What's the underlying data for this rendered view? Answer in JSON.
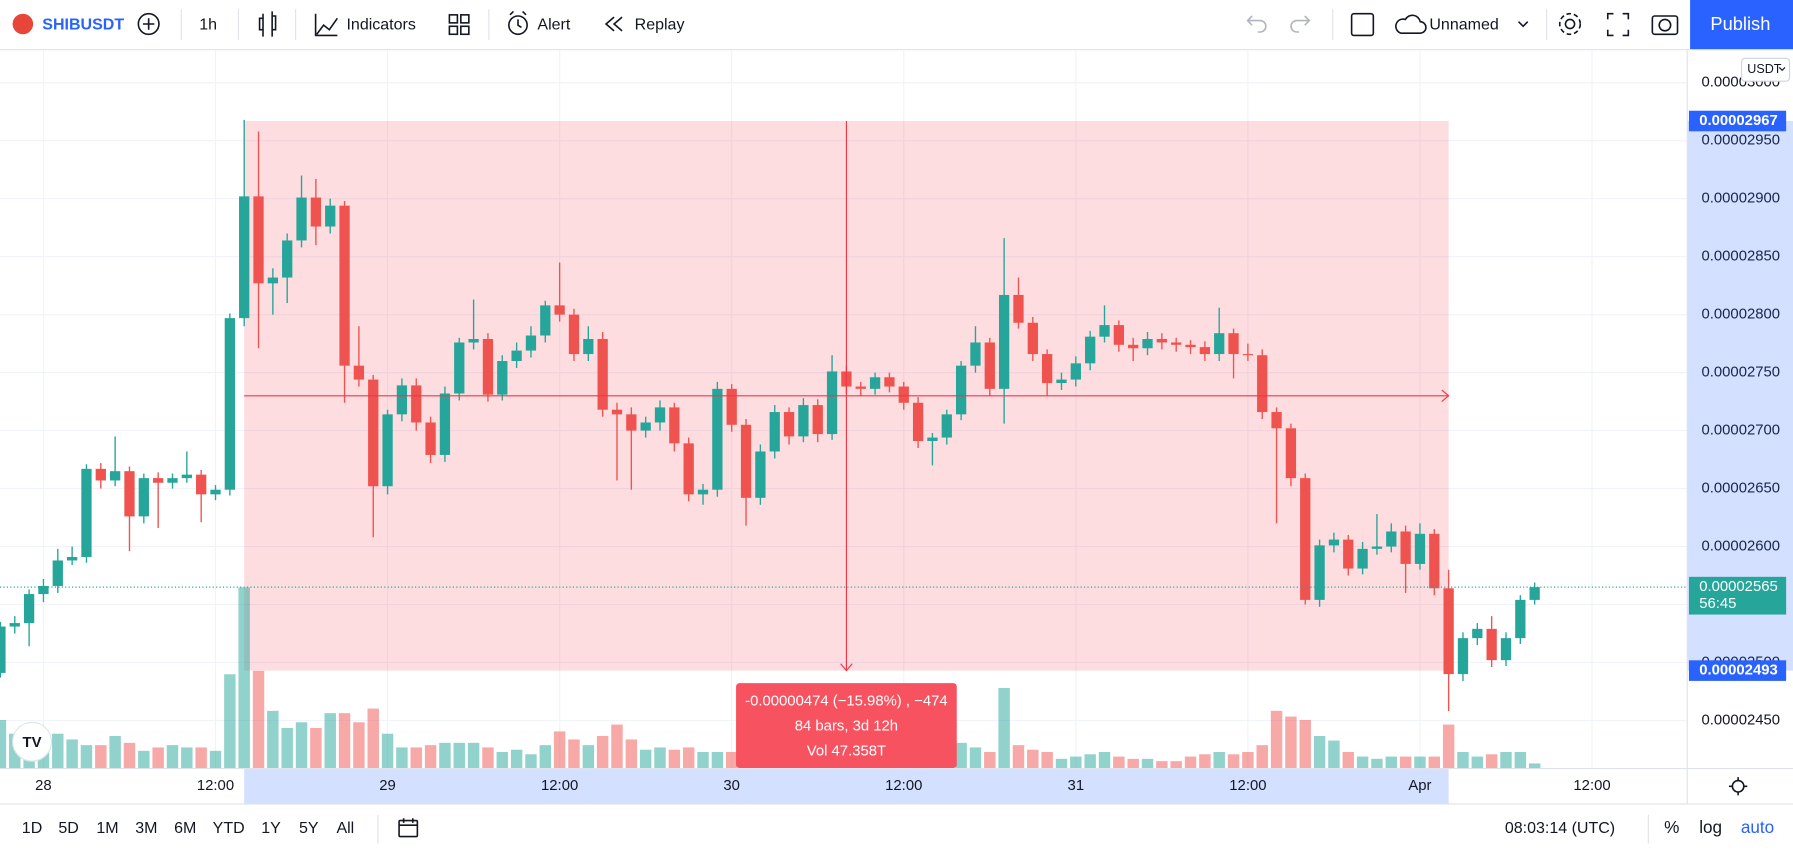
{
  "toolbar": {
    "symbol": "SHIBUSDT",
    "interval": "1h",
    "indicators": "Indicators",
    "alert": "Alert",
    "replay": "Replay",
    "layout_name": "Unnamed",
    "publish": "Publish"
  },
  "chart_data": {
    "type": "candlestick",
    "currency": "USDT",
    "x": [
      -3,
      -2,
      -1,
      0,
      1,
      2,
      3,
      4,
      5,
      6,
      7,
      8,
      9,
      10,
      11,
      12,
      13,
      14,
      15,
      16,
      17,
      18,
      19,
      20,
      21,
      22,
      23,
      24,
      25,
      26,
      27,
      28,
      29,
      30,
      31,
      32,
      33,
      34,
      35,
      36,
      37,
      38,
      39,
      40,
      41,
      42,
      43,
      44,
      45,
      46,
      47,
      48,
      49,
      50,
      51,
      52,
      53,
      54,
      55,
      56,
      57,
      58,
      59,
      60,
      61,
      62,
      63,
      64,
      65,
      66,
      67,
      68,
      69,
      70,
      71,
      72,
      73,
      74,
      75,
      76,
      77,
      78,
      79,
      80,
      81,
      82,
      83,
      84,
      85,
      86,
      87,
      88,
      89,
      90,
      91,
      92,
      93,
      94,
      95,
      96,
      97,
      98,
      99,
      100,
      101,
      102,
      103,
      104
    ],
    "open": [
      2.491e-05,
      2.531e-05,
      2.534e-05,
      2.559e-05,
      2.566e-05,
      2.588e-05,
      2.591e-05,
      2.667e-05,
      2.657e-05,
      2.665e-05,
      2.626e-05,
      2.659e-05,
      2.655e-05,
      2.659e-05,
      2.662e-05,
      2.645e-05,
      2.649e-05,
      2.797e-05,
      2.902e-05,
      2.827e-05,
      2.832e-05,
      2.864e-05,
      2.901e-05,
      2.876e-05,
      2.894e-05,
      2.756e-05,
      2.744e-05,
      2.652e-05,
      2.714e-05,
      2.739e-05,
      2.707e-05,
      2.679e-05,
      2.732e-05,
      2.776e-05,
      2.779e-05,
      2.731e-05,
      2.76e-05,
      2.769e-05,
      2.782e-05,
      2.808e-05,
      2.8e-05,
      2.766e-05,
      2.779e-05,
      2.718e-05,
      2.714e-05,
      2.7e-05,
      2.707e-05,
      2.72e-05,
      2.689e-05,
      2.645e-05,
      2.649e-05,
      2.736e-05,
      2.705e-05,
      2.642e-05,
      2.682e-05,
      2.716e-05,
      2.695e-05,
      2.722e-05,
      2.697e-05,
      2.751e-05,
      2.738e-05,
      2.736e-05,
      2.746e-05,
      2.738e-05,
      2.724e-05,
      2.691e-05,
      2.694e-05,
      2.714e-05,
      2.756e-05,
      2.776e-05,
      2.736e-05,
      2.817e-05,
      2.793e-05,
      2.766e-05,
      2.741e-05,
      2.744e-05,
      2.758e-05,
      2.781e-05,
      2.791e-05,
      2.774e-05,
      2.771e-05,
      2.779e-05,
      2.776e-05,
      2.774e-05,
      2.772e-05,
      2.766e-05,
      2.784e-05,
      2.766e-05,
      2.765e-05,
      2.716e-05,
      2.702e-05,
      2.659e-05,
      2.554e-05,
      2.601e-05,
      2.606e-05,
      2.581e-05,
      2.598e-05,
      2.6e-05,
      2.613e-05,
      2.585e-05,
      2.611e-05,
      2.564e-05,
      2.49e-05,
      2.521e-05,
      2.529e-05,
      2.502e-05,
      2.521e-05,
      2.554e-05
    ],
    "high": [
      2.535e-05,
      2.54e-05,
      2.563e-05,
      2.572e-05,
      2.598e-05,
      2.6e-05,
      2.671e-05,
      2.672e-05,
      2.695e-05,
      2.669e-05,
      2.663e-05,
      2.664e-05,
      2.663e-05,
      2.682e-05,
      2.666e-05,
      2.653e-05,
      2.801e-05,
      2.968e-05,
      2.958e-05,
      2.84e-05,
      2.87e-05,
      2.92e-05,
      2.917e-05,
      2.9e-05,
      2.898e-05,
      2.79e-05,
      2.748e-05,
      2.718e-05,
      2.745e-05,
      2.745e-05,
      2.712e-05,
      2.738e-05,
      2.78e-05,
      2.813e-05,
      2.784e-05,
      2.765e-05,
      2.776e-05,
      2.79e-05,
      2.812e-05,
      2.845e-05,
      2.805e-05,
      2.79e-05,
      2.785e-05,
      2.724e-05,
      2.72e-05,
      2.712e-05,
      2.726e-05,
      2.724e-05,
      2.694e-05,
      2.654e-05,
      2.742e-05,
      2.74e-05,
      2.71e-05,
      2.688e-05,
      2.722e-05,
      2.72e-05,
      2.728e-05,
      2.727e-05,
      2.765e-05,
      2.756e-05,
      2.742e-05,
      2.75e-05,
      2.75e-05,
      2.742e-05,
      2.729e-05,
      2.698e-05,
      2.718e-05,
      2.76e-05,
      2.79e-05,
      2.78e-05,
      2.866e-05,
      2.832e-05,
      2.798e-05,
      2.77e-05,
      2.75e-05,
      2.764e-05,
      2.786e-05,
      2.808e-05,
      2.795e-05,
      2.78e-05,
      2.785e-05,
      2.784e-05,
      2.78e-05,
      2.778e-05,
      2.777e-05,
      2.806e-05,
      2.788e-05,
      2.775e-05,
      2.77e-05,
      2.72e-05,
      2.706e-05,
      2.663e-05,
      2.606e-05,
      2.612e-05,
      2.61e-05,
      2.604e-05,
      2.628e-05,
      2.62e-05,
      2.618e-05,
      2.62e-05,
      2.615e-05,
      2.58e-05,
      2.526e-05,
      2.534e-05,
      2.54e-05,
      2.526e-05,
      2.558e-05,
      2.569e-05
    ],
    "low": [
      2.487e-05,
      2.525e-05,
      2.514e-05,
      2.552e-05,
      2.56e-05,
      2.584e-05,
      2.586e-05,
      2.65e-05,
      2.652e-05,
      2.596e-05,
      2.62e-05,
      2.616e-05,
      2.65e-05,
      2.655e-05,
      2.621e-05,
      2.64e-05,
      2.644e-05,
      2.79e-05,
      2.771e-05,
      2.8e-05,
      2.81e-05,
      2.858e-05,
      2.86e-05,
      2.87e-05,
      2.724e-05,
      2.738e-05,
      2.608e-05,
      2.645e-05,
      2.708e-05,
      2.7e-05,
      2.672e-05,
      2.673e-05,
      2.726e-05,
      2.77e-05,
      2.725e-05,
      2.726e-05,
      2.754e-05,
      2.763e-05,
      2.776e-05,
      2.794e-05,
      2.76e-05,
      2.76e-05,
      2.712e-05,
      2.657e-05,
      2.649e-05,
      2.694e-05,
      2.7e-05,
      2.682e-05,
      2.639e-05,
      2.636e-05,
      2.643e-05,
      2.699e-05,
      2.618e-05,
      2.636e-05,
      2.676e-05,
      2.688e-05,
      2.69e-05,
      2.69e-05,
      2.692e-05,
      2.732e-05,
      2.73e-05,
      2.731e-05,
      2.733e-05,
      2.718e-05,
      2.685e-05,
      2.67e-05,
      2.688e-05,
      2.709e-05,
      2.75e-05,
      2.73e-05,
      2.706e-05,
      2.788e-05,
      2.76e-05,
      2.73e-05,
      2.735e-05,
      2.738e-05,
      2.752e-05,
      2.776e-05,
      2.768e-05,
      2.76e-05,
      2.765e-05,
      2.77e-05,
      2.768e-05,
      2.766e-05,
      2.76e-05,
      2.76e-05,
      2.745e-05,
      2.76e-05,
      2.71e-05,
      2.62e-05,
      2.652e-05,
      2.55e-05,
      2.548e-05,
      2.595e-05,
      2.575e-05,
      2.576e-05,
      2.593e-05,
      2.595e-05,
      2.56e-05,
      2.58e-05,
      2.558e-05,
      2.458e-05,
      2.484e-05,
      2.515e-05,
      2.496e-05,
      2.497e-05,
      2.516e-05,
      2.55e-05
    ],
    "close": [
      2.531e-05,
      2.534e-05,
      2.559e-05,
      2.566e-05,
      2.588e-05,
      2.591e-05,
      2.667e-05,
      2.657e-05,
      2.665e-05,
      2.626e-05,
      2.659e-05,
      2.655e-05,
      2.659e-05,
      2.662e-05,
      2.645e-05,
      2.649e-05,
      2.797e-05,
      2.902e-05,
      2.827e-05,
      2.832e-05,
      2.864e-05,
      2.901e-05,
      2.876e-05,
      2.894e-05,
      2.756e-05,
      2.744e-05,
      2.652e-05,
      2.714e-05,
      2.739e-05,
      2.707e-05,
      2.679e-05,
      2.732e-05,
      2.776e-05,
      2.779e-05,
      2.731e-05,
      2.76e-05,
      2.769e-05,
      2.782e-05,
      2.808e-05,
      2.8e-05,
      2.766e-05,
      2.779e-05,
      2.718e-05,
      2.714e-05,
      2.7e-05,
      2.707e-05,
      2.72e-05,
      2.689e-05,
      2.645e-05,
      2.649e-05,
      2.736e-05,
      2.705e-05,
      2.642e-05,
      2.682e-05,
      2.716e-05,
      2.695e-05,
      2.722e-05,
      2.697e-05,
      2.751e-05,
      2.738e-05,
      2.736e-05,
      2.746e-05,
      2.738e-05,
      2.724e-05,
      2.691e-05,
      2.694e-05,
      2.714e-05,
      2.756e-05,
      2.776e-05,
      2.736e-05,
      2.817e-05,
      2.793e-05,
      2.766e-05,
      2.741e-05,
      2.744e-05,
      2.758e-05,
      2.781e-05,
      2.791e-05,
      2.774e-05,
      2.771e-05,
      2.779e-05,
      2.776e-05,
      2.774e-05,
      2.772e-05,
      2.766e-05,
      2.784e-05,
      2.766e-05,
      2.765e-05,
      2.716e-05,
      2.702e-05,
      2.659e-05,
      2.554e-05,
      2.601e-05,
      2.606e-05,
      2.581e-05,
      2.598e-05,
      2.6e-05,
      2.613e-05,
      2.585e-05,
      2.611e-05,
      2.564e-05,
      2.49e-05,
      2.521e-05,
      2.529e-05,
      2.502e-05,
      2.521e-05,
      2.554e-05,
      2.565e-05
    ],
    "volume": [
      0.84,
      0.6,
      0.76,
      0.6,
      0.6,
      0.5,
      0.4,
      0.4,
      0.56,
      0.44,
      0.3,
      0.36,
      0.4,
      0.36,
      0.36,
      0.3,
      1.64,
      3.16,
      1.7,
      1.0,
      0.7,
      0.8,
      0.7,
      0.96,
      0.96,
      0.8,
      1.04,
      0.6,
      0.36,
      0.36,
      0.4,
      0.44,
      0.44,
      0.44,
      0.36,
      0.28,
      0.32,
      0.24,
      0.4,
      0.64,
      0.5,
      0.4,
      0.56,
      0.76,
      0.5,
      0.32,
      0.36,
      0.32,
      0.36,
      0.28,
      0.28,
      0.28,
      0.4,
      0.4,
      0.28,
      0.28,
      0.28,
      0.32,
      0.32,
      0.44,
      0.28,
      0.2,
      0.2,
      0.2,
      0.4,
      0.4,
      0.4,
      0.44,
      0.36,
      0.28,
      1.4,
      0.4,
      0.32,
      0.28,
      0.16,
      0.2,
      0.24,
      0.28,
      0.2,
      0.16,
      0.16,
      0.12,
      0.12,
      0.2,
      0.24,
      0.28,
      0.24,
      0.28,
      0.4,
      1.0,
      0.9,
      0.84,
      0.56,
      0.48,
      0.28,
      0.2,
      0.16,
      0.2,
      0.2,
      0.2,
      0.2,
      0.76,
      0.28,
      0.2,
      0.24,
      0.28,
      0.28,
      0.08
    ],
    "up_color": "#26a69a",
    "down_color": "#ef5350",
    "xlim": [
      -3.03,
      114.6
    ],
    "xticks": [
      {
        "value": 0,
        "label": "28"
      },
      {
        "value": 12,
        "label": "12:00"
      },
      {
        "value": 24,
        "label": "29"
      },
      {
        "value": 36,
        "label": "12:00"
      },
      {
        "value": 48,
        "label": "30"
      },
      {
        "value": 60,
        "label": "12:00"
      },
      {
        "value": 72,
        "label": "31"
      },
      {
        "value": 84,
        "label": "12:00"
      },
      {
        "value": 96,
        "label": "Apr"
      },
      {
        "value": 108,
        "label": "12:00"
      }
    ],
    "ylim": [
      2.409e-05,
      3.028e-05
    ],
    "yticks": [
      {
        "value": 2.45e-05,
        "label": "0.00002450"
      },
      {
        "value": 2.5e-05,
        "label": "0.00002500"
      },
      {
        "value": 2.55e-05,
        "label": "0.00002550"
      },
      {
        "value": 2.6e-05,
        "label": "0.00002600"
      },
      {
        "value": 2.65e-05,
        "label": "0.00002650"
      },
      {
        "value": 2.7e-05,
        "label": "0.00002700"
      },
      {
        "value": 2.75e-05,
        "label": "0.00002750"
      },
      {
        "value": 2.8e-05,
        "label": "0.00002800"
      },
      {
        "value": 2.85e-05,
        "label": "0.00002850"
      },
      {
        "value": 2.9e-05,
        "label": "0.00002900"
      },
      {
        "value": 2.95e-05,
        "label": "0.00002950"
      },
      {
        "value": 3e-05,
        "label": "0.00003000"
      }
    ],
    "grid": true,
    "last_price": {
      "value": 2.565e-05,
      "label": "0.00002565"
    },
    "countdown": "56:45",
    "measure": {
      "from": 14,
      "to": 98,
      "high": {
        "value": 2.967e-05,
        "label": "0.00002967"
      },
      "low": {
        "value": 2.493e-05,
        "label": "0.00002493"
      },
      "change_text": "-0.00000474 (−15.98%) , −474",
      "bars_text": "84 bars, 3d 12h",
      "volume_text": "Vol 47.358T"
    }
  },
  "bottom_bar": {
    "ranges": [
      "1D",
      "5D",
      "1M",
      "3M",
      "6M",
      "YTD",
      "1Y",
      "5Y",
      "All"
    ],
    "clock": "08:03:14 (UTC)",
    "percent": "%",
    "log": "log",
    "auto": "auto"
  }
}
